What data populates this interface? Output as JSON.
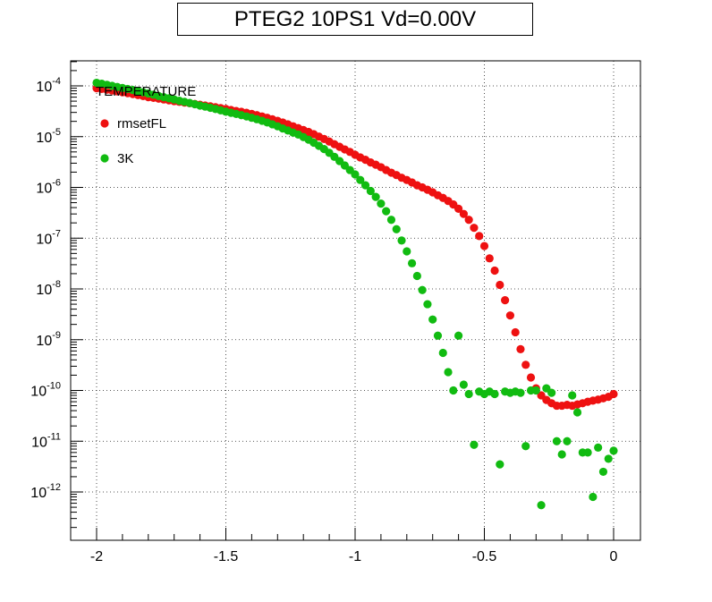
{
  "chart_data": {
    "type": "scatter",
    "title": "PTEG2 10PS1 Vd=0.00V",
    "xlabel": "",
    "ylabel": "",
    "xlim": [
      -2.1,
      0.1
    ],
    "ylim": [
      1e-13,
      0.0002
    ],
    "y_scale": "log",
    "grid": true,
    "legend": {
      "placement": "top-left",
      "header": "TEMPERATURE"
    },
    "x_ticks": [
      {
        "value": -2,
        "label": "-2"
      },
      {
        "value": -1.5,
        "label": "-1.5"
      },
      {
        "value": -1,
        "label": "-1"
      },
      {
        "value": -0.5,
        "label": "-0.5"
      },
      {
        "value": 0,
        "label": "0"
      }
    ],
    "y_ticks": [
      {
        "value": 0.0001,
        "base": "10",
        "exp": "-4"
      },
      {
        "value": 1e-05,
        "base": "10",
        "exp": "-5"
      },
      {
        "value": 1e-06,
        "base": "10",
        "exp": "-6"
      },
      {
        "value": 1e-07,
        "base": "10",
        "exp": "-7"
      },
      {
        "value": 1e-08,
        "base": "10",
        "exp": "-8"
      },
      {
        "value": 1e-09,
        "base": "10",
        "exp": "-9"
      },
      {
        "value": 1e-10,
        "base": "10",
        "exp": "-10"
      },
      {
        "value": 1e-11,
        "base": "10",
        "exp": "-11"
      },
      {
        "value": 1e-12,
        "base": "10",
        "exp": "-12"
      }
    ],
    "series": [
      {
        "name": "rmsetFL",
        "color": "#ee1111",
        "points": [
          [
            -2.0,
            9e-05
          ],
          [
            -1.98,
            8.7e-05
          ],
          [
            -1.96,
            8.4e-05
          ],
          [
            -1.94,
            8.1e-05
          ],
          [
            -1.92,
            7.8e-05
          ],
          [
            -1.9,
            7.5e-05
          ],
          [
            -1.88,
            7.2e-05
          ],
          [
            -1.86,
            6.9e-05
          ],
          [
            -1.84,
            6.6e-05
          ],
          [
            -1.82,
            6.3e-05
          ],
          [
            -1.8,
            6e-05
          ],
          [
            -1.78,
            5.8e-05
          ],
          [
            -1.76,
            5.6e-05
          ],
          [
            -1.74,
            5.4e-05
          ],
          [
            -1.72,
            5.2e-05
          ],
          [
            -1.7,
            5e-05
          ],
          [
            -1.68,
            4.85e-05
          ],
          [
            -1.66,
            4.7e-05
          ],
          [
            -1.64,
            4.55e-05
          ],
          [
            -1.62,
            4.4e-05
          ],
          [
            -1.6,
            4.25e-05
          ],
          [
            -1.58,
            4.1e-05
          ],
          [
            -1.56,
            3.95e-05
          ],
          [
            -1.54,
            3.8e-05
          ],
          [
            -1.52,
            3.65e-05
          ],
          [
            -1.5,
            3.5e-05
          ],
          [
            -1.48,
            3.35e-05
          ],
          [
            -1.46,
            3.2e-05
          ],
          [
            -1.44,
            3.08e-05
          ],
          [
            -1.42,
            2.95e-05
          ],
          [
            -1.4,
            2.8e-05
          ],
          [
            -1.38,
            2.65e-05
          ],
          [
            -1.36,
            2.5e-05
          ],
          [
            -1.34,
            2.35e-05
          ],
          [
            -1.32,
            2.2e-05
          ],
          [
            -1.3,
            2.05e-05
          ],
          [
            -1.28,
            1.9e-05
          ],
          [
            -1.26,
            1.75e-05
          ],
          [
            -1.24,
            1.6e-05
          ],
          [
            -1.22,
            1.47e-05
          ],
          [
            -1.2,
            1.35e-05
          ],
          [
            -1.18,
            1.24e-05
          ],
          [
            -1.16,
            1.12e-05
          ],
          [
            -1.14,
            1e-05
          ],
          [
            -1.12,
            9e-06
          ],
          [
            -1.1,
            8e-06
          ],
          [
            -1.08,
            7.1e-06
          ],
          [
            -1.06,
            6.3e-06
          ],
          [
            -1.04,
            5.6e-06
          ],
          [
            -1.02,
            5e-06
          ],
          [
            -1.0,
            4.4e-06
          ],
          [
            -0.98,
            3.9e-06
          ],
          [
            -0.96,
            3.5e-06
          ],
          [
            -0.94,
            3.1e-06
          ],
          [
            -0.92,
            2.8e-06
          ],
          [
            -0.9,
            2.5e-06
          ],
          [
            -0.88,
            2.2e-06
          ],
          [
            -0.86,
            1.95e-06
          ],
          [
            -0.84,
            1.75e-06
          ],
          [
            -0.82,
            1.55e-06
          ],
          [
            -0.8,
            1.4e-06
          ],
          [
            -0.78,
            1.25e-06
          ],
          [
            -0.76,
            1.1e-06
          ],
          [
            -0.74,
            1e-06
          ],
          [
            -0.72,
            9e-07
          ],
          [
            -0.7,
            8e-07
          ],
          [
            -0.68,
            7e-07
          ],
          [
            -0.66,
            6.2e-07
          ],
          [
            -0.64,
            5.4e-07
          ],
          [
            -0.62,
            4.6e-07
          ],
          [
            -0.6,
            3.8e-07
          ],
          [
            -0.58,
            3e-07
          ],
          [
            -0.56,
            2.3e-07
          ],
          [
            -0.54,
            1.6e-07
          ],
          [
            -0.52,
            1.1e-07
          ],
          [
            -0.5,
            7e-08
          ],
          [
            -0.48,
            4e-08
          ],
          [
            -0.46,
            2.3e-08
          ],
          [
            -0.44,
            1.2e-08
          ],
          [
            -0.42,
            6e-09
          ],
          [
            -0.4,
            3e-09
          ],
          [
            -0.38,
            1.4e-09
          ],
          [
            -0.36,
            6.5e-10
          ],
          [
            -0.34,
            3.2e-10
          ],
          [
            -0.32,
            1.8e-10
          ],
          [
            -0.3,
            1.1e-10
          ],
          [
            -0.28,
            8e-11
          ],
          [
            -0.26,
            6.5e-11
          ],
          [
            -0.24,
            5.6e-11
          ],
          [
            -0.22,
            5e-11
          ],
          [
            -0.2,
            5e-11
          ],
          [
            -0.18,
            5.2e-11
          ],
          [
            -0.16,
            5e-11
          ],
          [
            -0.14,
            5.3e-11
          ],
          [
            -0.12,
            5.6e-11
          ],
          [
            -0.1,
            6e-11
          ],
          [
            -0.08,
            6.3e-11
          ],
          [
            -0.06,
            6.6e-11
          ],
          [
            -0.04,
            7e-11
          ],
          [
            -0.02,
            7.5e-11
          ],
          [
            0.0,
            8.5e-11
          ]
        ]
      },
      {
        "name": "3K",
        "color": "#11bb11",
        "points": [
          [
            -2.0,
            0.000115
          ],
          [
            -1.98,
            0.00011
          ],
          [
            -1.96,
            0.000105
          ],
          [
            -1.94,
            0.0001
          ],
          [
            -1.92,
            9.5e-05
          ],
          [
            -1.9,
            9.1e-05
          ],
          [
            -1.88,
            8.7e-05
          ],
          [
            -1.86,
            8.3e-05
          ],
          [
            -1.84,
            7.9e-05
          ],
          [
            -1.82,
            7.5e-05
          ],
          [
            -1.8,
            7.1e-05
          ],
          [
            -1.78,
            6.7e-05
          ],
          [
            -1.76,
            6.3e-05
          ],
          [
            -1.74,
            6e-05
          ],
          [
            -1.72,
            5.7e-05
          ],
          [
            -1.7,
            5.4e-05
          ],
          [
            -1.68,
            5.1e-05
          ],
          [
            -1.66,
            4.85e-05
          ],
          [
            -1.64,
            4.6e-05
          ],
          [
            -1.62,
            4.35e-05
          ],
          [
            -1.6,
            4.1e-05
          ],
          [
            -1.58,
            3.9e-05
          ],
          [
            -1.56,
            3.7e-05
          ],
          [
            -1.54,
            3.5e-05
          ],
          [
            -1.52,
            3.3e-05
          ],
          [
            -1.5,
            3.1e-05
          ],
          [
            -1.48,
            2.95e-05
          ],
          [
            -1.46,
            2.8e-05
          ],
          [
            -1.44,
            2.65e-05
          ],
          [
            -1.42,
            2.5e-05
          ],
          [
            -1.4,
            2.35e-05
          ],
          [
            -1.38,
            2.2e-05
          ],
          [
            -1.36,
            2.05e-05
          ],
          [
            -1.34,
            1.9e-05
          ],
          [
            -1.32,
            1.75e-05
          ],
          [
            -1.3,
            1.6e-05
          ],
          [
            -1.28,
            1.45e-05
          ],
          [
            -1.26,
            1.32e-05
          ],
          [
            -1.24,
            1.2e-05
          ],
          [
            -1.22,
            1.1e-05
          ],
          [
            -1.2,
            9.8e-06
          ],
          [
            -1.18,
            8.7e-06
          ],
          [
            -1.16,
            7.6e-06
          ],
          [
            -1.14,
            6.6e-06
          ],
          [
            -1.12,
            5.7e-06
          ],
          [
            -1.1,
            4.8e-06
          ],
          [
            -1.08,
            4e-06
          ],
          [
            -1.06,
            3.3e-06
          ],
          [
            -1.04,
            2.7e-06
          ],
          [
            -1.02,
            2.2e-06
          ],
          [
            -1.0,
            1.8e-06
          ],
          [
            -0.98,
            1.4e-06
          ],
          [
            -0.96,
            1.1e-06
          ],
          [
            -0.94,
            8.5e-07
          ],
          [
            -0.92,
            6.5e-07
          ],
          [
            -0.9,
            4.8e-07
          ],
          [
            -0.88,
            3.4e-07
          ],
          [
            -0.86,
            2.3e-07
          ],
          [
            -0.84,
            1.5e-07
          ],
          [
            -0.82,
            9e-08
          ],
          [
            -0.8,
            5.5e-08
          ],
          [
            -0.78,
            3.2e-08
          ],
          [
            -0.76,
            1.8e-08
          ],
          [
            -0.74,
            9.5e-09
          ],
          [
            -0.72,
            5e-09
          ],
          [
            -0.7,
            2.5e-09
          ],
          [
            -0.68,
            1.2e-09
          ],
          [
            -0.66,
            5.5e-10
          ],
          [
            -0.64,
            2.3e-10
          ],
          [
            -0.62,
            1e-10
          ],
          [
            -0.6,
            1.2e-09
          ],
          [
            -0.58,
            1.3e-10
          ],
          [
            -0.56,
            8.5e-11
          ],
          [
            -0.54,
            8.5e-12
          ],
          [
            -0.52,
            9.5e-11
          ],
          [
            -0.5,
            8.5e-11
          ],
          [
            -0.48,
            9.5e-11
          ],
          [
            -0.46,
            8.5e-11
          ],
          [
            -0.44,
            3.5e-12
          ],
          [
            -0.42,
            9.5e-11
          ],
          [
            -0.4,
            9e-11
          ],
          [
            -0.38,
            9.5e-11
          ],
          [
            -0.36,
            9e-11
          ],
          [
            -0.34,
            8e-12
          ],
          [
            -0.32,
            1e-10
          ],
          [
            -0.3,
            1e-10
          ],
          [
            -0.28,
            5.5e-13
          ],
          [
            -0.26,
            1.1e-10
          ],
          [
            -0.24,
            9e-11
          ],
          [
            -0.22,
            1e-11
          ],
          [
            -0.2,
            5.5e-12
          ],
          [
            -0.18,
            1e-11
          ],
          [
            -0.16,
            8e-11
          ],
          [
            -0.14,
            3.7e-11
          ],
          [
            -0.12,
            6e-12
          ],
          [
            -0.1,
            6e-12
          ],
          [
            -0.08,
            8e-13
          ],
          [
            -0.06,
            7.5e-12
          ],
          [
            -0.04,
            2.5e-12
          ],
          [
            -0.02,
            4.5e-12
          ],
          [
            0.0,
            6.5e-12
          ]
        ]
      }
    ]
  }
}
